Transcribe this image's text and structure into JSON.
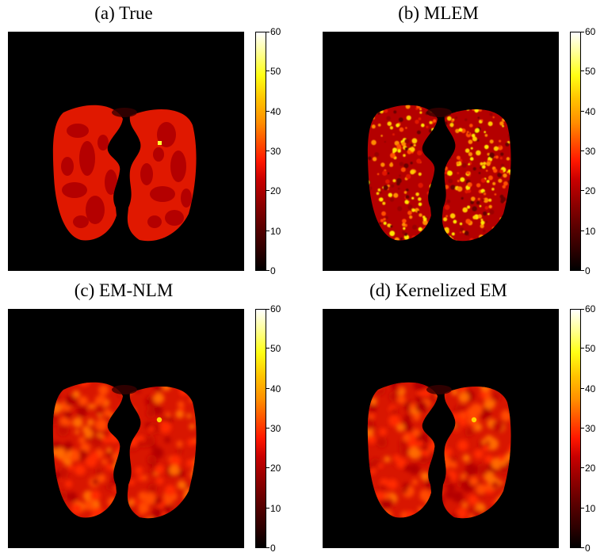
{
  "panels": [
    {
      "title": "(a) True",
      "texture": "true"
    },
    {
      "title": "(b) MLEM",
      "texture": "mlem"
    },
    {
      "title": "(c) EM-NLM",
      "texture": "nlm"
    },
    {
      "title": "(d) Kernelized EM",
      "texture": "kem"
    }
  ],
  "colorbar": {
    "min": 0,
    "max": 60,
    "ticks": [
      "0",
      "10",
      "20",
      "30",
      "40",
      "50",
      "60"
    ],
    "colormap": "hot",
    "colors": [
      "#000000",
      "#5a0000",
      "#c80000",
      "#ff5200",
      "#ff8d00",
      "#ffff14",
      "#ffffff"
    ]
  }
}
